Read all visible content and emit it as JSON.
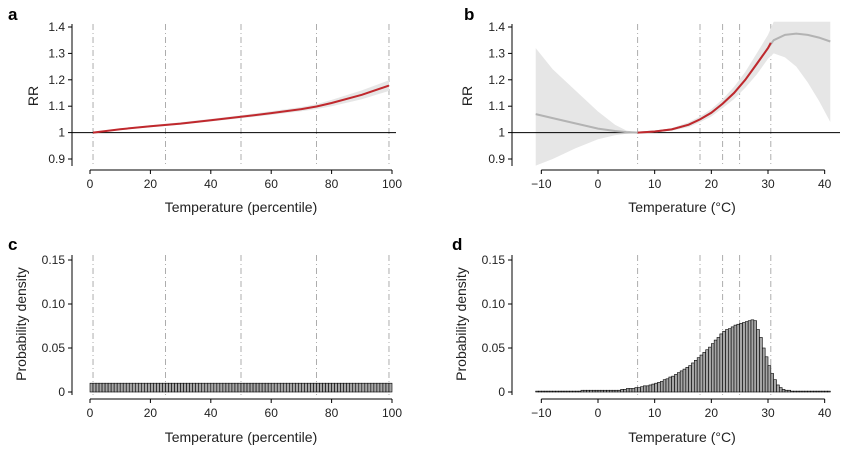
{
  "chart_data": [
    {
      "panel": "a",
      "type": "line",
      "xlabel": "Temperature (percentile)",
      "ylabel": "RR",
      "xlim": [
        0,
        100
      ],
      "ylim": [
        0.875,
        1.42
      ],
      "xticks": [
        0,
        20,
        40,
        60,
        80,
        100
      ],
      "yticks": [
        0.9,
        1.0,
        1.1,
        1.2,
        1.3,
        1.4
      ],
      "reference_y": 1.0,
      "vlines": [
        1,
        25,
        50,
        75,
        99
      ],
      "colors": {
        "line": "#c0282d",
        "band": "#e6e6e6",
        "reference": "#000000",
        "vline": "#999999"
      },
      "series": [
        {
          "x": [
            1,
            10,
            20,
            30,
            40,
            50,
            60,
            70,
            75,
            80,
            90,
            99
          ],
          "y": [
            1.0,
            1.013,
            1.024,
            1.034,
            1.047,
            1.06,
            1.074,
            1.089,
            1.099,
            1.112,
            1.143,
            1.178
          ],
          "lower": [
            1.0,
            1.01,
            1.02,
            1.03,
            1.042,
            1.054,
            1.067,
            1.081,
            1.089,
            1.1,
            1.126,
            1.158
          ],
          "upper": [
            1.0,
            1.016,
            1.028,
            1.039,
            1.052,
            1.066,
            1.081,
            1.097,
            1.108,
            1.124,
            1.16,
            1.198
          ]
        }
      ]
    },
    {
      "panel": "b",
      "type": "line",
      "xlabel": "Temperature (°C)",
      "ylabel": "RR",
      "xlim": [
        -12,
        42
      ],
      "ylim": [
        0.875,
        1.42
      ],
      "xticks": [
        -10,
        0,
        10,
        20,
        30,
        40
      ],
      "yticks": [
        0.9,
        1.0,
        1.1,
        1.2,
        1.3,
        1.4
      ],
      "reference_y": 1.0,
      "vlines": [
        7,
        18,
        22,
        25,
        30.5
      ],
      "colors": {
        "highlight": "#c0282d",
        "extrapolated": "#b3b3b3",
        "band": "#e6e6e6",
        "reference": "#000000",
        "vline": "#999999"
      },
      "series": [
        {
          "x": [
            -11,
            -8,
            -4,
            0,
            3,
            5,
            7,
            10,
            13,
            16,
            18,
            20,
            22,
            24,
            26,
            28,
            30,
            31,
            33,
            35,
            37,
            39,
            41
          ],
          "y": [
            1.07,
            1.055,
            1.035,
            1.015,
            1.006,
            1.002,
            1.0,
            1.004,
            1.012,
            1.03,
            1.05,
            1.075,
            1.11,
            1.15,
            1.2,
            1.26,
            1.32,
            1.35,
            1.37,
            1.375,
            1.37,
            1.36,
            1.345
          ],
          "lower": [
            0.875,
            0.9,
            0.94,
            0.975,
            0.99,
            0.996,
            1.0,
            1.001,
            1.007,
            1.021,
            1.039,
            1.061,
            1.093,
            1.127,
            1.17,
            1.22,
            1.28,
            1.3,
            1.285,
            1.25,
            1.19,
            1.12,
            1.04
          ],
          "upper": [
            1.32,
            1.24,
            1.16,
            1.08,
            1.03,
            1.008,
            1.0,
            1.007,
            1.017,
            1.039,
            1.061,
            1.089,
            1.127,
            1.173,
            1.23,
            1.3,
            1.37,
            1.42,
            1.42,
            1.42,
            1.42,
            1.42,
            1.42
          ]
        }
      ],
      "highlight_range": [
        7,
        30.5
      ]
    },
    {
      "panel": "c",
      "type": "bar",
      "xlabel": "Temperature (percentile)",
      "ylabel": "Probability density",
      "xlim": [
        0,
        100
      ],
      "ylim": [
        0,
        0.15
      ],
      "xticks": [
        0,
        20,
        40,
        60,
        80,
        100
      ],
      "yticks": [
        0,
        0.05,
        0.1,
        0.15
      ],
      "ytick_labels": [
        "0",
        "0.05",
        "0.10",
        "0.15"
      ],
      "vlines": [
        1,
        25,
        50,
        75,
        99
      ],
      "colors": {
        "bar_fill": "#a6a6a6",
        "bar_edge": "#000000",
        "vline": "#999999"
      },
      "bin_start": 0,
      "bin_width": 1,
      "values": [
        0.01,
        0.01,
        0.01,
        0.01,
        0.01,
        0.01,
        0.01,
        0.01,
        0.01,
        0.01,
        0.01,
        0.01,
        0.01,
        0.01,
        0.01,
        0.01,
        0.01,
        0.01,
        0.01,
        0.01,
        0.01,
        0.01,
        0.01,
        0.01,
        0.01,
        0.01,
        0.01,
        0.01,
        0.01,
        0.01,
        0.01,
        0.01,
        0.01,
        0.01,
        0.01,
        0.01,
        0.01,
        0.01,
        0.01,
        0.01,
        0.01,
        0.01,
        0.01,
        0.01,
        0.01,
        0.01,
        0.01,
        0.01,
        0.01,
        0.01,
        0.01,
        0.01,
        0.01,
        0.01,
        0.01,
        0.01,
        0.01,
        0.01,
        0.01,
        0.01,
        0.01,
        0.01,
        0.01,
        0.01,
        0.01,
        0.01,
        0.01,
        0.01,
        0.01,
        0.01,
        0.01,
        0.01,
        0.01,
        0.01,
        0.01,
        0.01,
        0.01,
        0.01,
        0.01,
        0.01,
        0.01,
        0.01,
        0.01,
        0.01,
        0.01,
        0.01,
        0.01,
        0.01,
        0.01,
        0.01,
        0.01,
        0.01,
        0.01,
        0.01,
        0.01,
        0.01,
        0.01,
        0.01,
        0.01,
        0.01
      ]
    },
    {
      "panel": "d",
      "type": "bar",
      "xlabel": "Temperature (°C)",
      "ylabel": "Probability density",
      "xlim": [
        -12,
        42
      ],
      "ylim": [
        0,
        0.15
      ],
      "xticks": [
        -10,
        0,
        10,
        20,
        30,
        40
      ],
      "yticks": [
        0,
        0.05,
        0.1,
        0.15
      ],
      "ytick_labels": [
        "0",
        "0.05",
        "0.10",
        "0.15"
      ],
      "vlines": [
        7,
        18,
        22,
        25,
        30.5
      ],
      "colors": {
        "bar_fill": "#a6a6a6",
        "bar_edge": "#000000",
        "vline": "#999999"
      },
      "bin_start": -11,
      "bin_width": 0.5,
      "values": [
        0.001,
        0.001,
        0.001,
        0.001,
        0.001,
        0.001,
        0.001,
        0.001,
        0.001,
        0.001,
        0.001,
        0.001,
        0.001,
        0.001,
        0.001,
        0.001,
        0.002,
        0.002,
        0.002,
        0.002,
        0.002,
        0.002,
        0.002,
        0.002,
        0.002,
        0.002,
        0.002,
        0.002,
        0.002,
        0.002,
        0.003,
        0.003,
        0.004,
        0.004,
        0.004,
        0.005,
        0.005,
        0.006,
        0.007,
        0.007,
        0.008,
        0.009,
        0.01,
        0.011,
        0.012,
        0.014,
        0.015,
        0.017,
        0.018,
        0.02,
        0.022,
        0.024,
        0.026,
        0.028,
        0.03,
        0.033,
        0.036,
        0.039,
        0.042,
        0.045,
        0.048,
        0.051,
        0.055,
        0.059,
        0.062,
        0.066,
        0.069,
        0.071,
        0.072,
        0.074,
        0.076,
        0.077,
        0.078,
        0.079,
        0.08,
        0.081,
        0.082,
        0.081,
        0.071,
        0.062,
        0.05,
        0.04,
        0.03,
        0.021,
        0.014,
        0.008,
        0.005,
        0.003,
        0.002,
        0.002,
        0.001,
        0.001,
        0.001,
        0.001,
        0.001,
        0.001,
        0.001,
        0.001,
        0.001,
        0.001,
        0.001,
        0.001,
        0.001,
        0.001
      ]
    }
  ],
  "panels": {
    "a": {
      "letter": "a",
      "xlabel": "Temperature (percentile)",
      "ylabel": "RR"
    },
    "b": {
      "letter": "b",
      "xlabel": "Temperature (°C)",
      "ylabel": "RR"
    },
    "c": {
      "letter": "c",
      "xlabel": "Temperature (percentile)",
      "ylabel": "Probability density"
    },
    "d": {
      "letter": "d",
      "xlabel": "Temperature (°C)",
      "ylabel": "Probability density"
    }
  }
}
